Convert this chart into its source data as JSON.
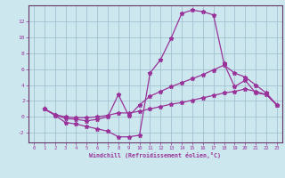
{
  "xlabel": "Windchill (Refroidissement éolien,°C)",
  "bg_color": "#cce8ee",
  "line_color": "#993399",
  "grid_color": "#99bbcc",
  "axis_color": "#663366",
  "xlim": [
    -0.5,
    23.5
  ],
  "ylim": [
    -3.2,
    14.0
  ],
  "xticks": [
    0,
    1,
    2,
    3,
    4,
    5,
    6,
    7,
    8,
    9,
    10,
    11,
    12,
    13,
    14,
    15,
    16,
    17,
    18,
    19,
    20,
    21,
    22,
    23
  ],
  "yticks": [
    -2,
    0,
    2,
    4,
    6,
    8,
    10,
    12
  ],
  "line1_x": [
    1,
    2,
    3,
    4,
    5,
    6,
    7,
    8,
    9,
    10,
    11,
    12,
    13,
    14,
    15,
    16,
    17,
    18,
    19,
    20,
    21,
    22,
    23
  ],
  "line1_y": [
    1,
    0.2,
    -0.7,
    -0.9,
    -1.2,
    -1.5,
    -1.8,
    -2.5,
    -2.5,
    -2.3,
    5.5,
    7.2,
    9.9,
    13.0,
    13.4,
    13.2,
    12.8,
    6.7,
    3.8,
    4.6,
    3.0,
    2.8,
    1.5
  ],
  "line2_x": [
    1,
    2,
    3,
    4,
    5,
    6,
    7,
    8,
    9,
    10,
    11,
    12,
    13,
    14,
    15,
    16,
    17,
    18,
    19,
    20,
    21,
    22,
    23
  ],
  "line2_y": [
    1,
    0.3,
    -0.2,
    -0.3,
    -0.5,
    -0.3,
    0.0,
    2.8,
    0.1,
    1.5,
    2.6,
    3.2,
    3.8,
    4.3,
    4.8,
    5.3,
    5.9,
    6.5,
    5.5,
    5.0,
    4.0,
    3.0,
    1.5
  ],
  "line3_x": [
    1,
    2,
    3,
    4,
    5,
    6,
    7,
    8,
    9,
    10,
    11,
    12,
    13,
    14,
    15,
    16,
    17,
    18,
    19,
    20,
    21,
    22,
    23
  ],
  "line3_y": [
    1,
    0.3,
    0.0,
    -0.1,
    -0.1,
    0.0,
    0.2,
    0.5,
    0.5,
    0.7,
    1.0,
    1.3,
    1.6,
    1.8,
    2.1,
    2.4,
    2.7,
    3.0,
    3.2,
    3.5,
    3.2,
    2.8,
    1.5
  ]
}
